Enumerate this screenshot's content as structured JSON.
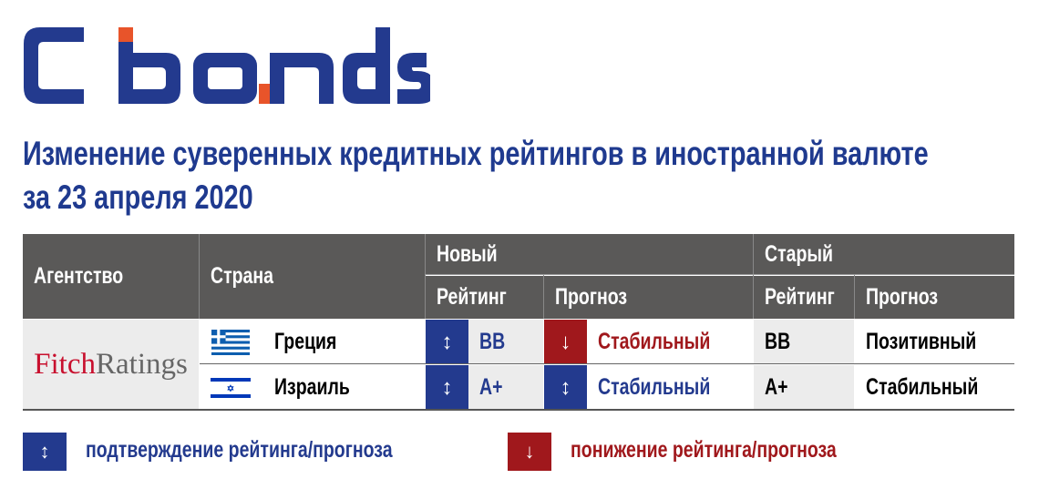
{
  "logo": {
    "text": "Cbonds"
  },
  "title": {
    "line1": "Изменение суверенных кредитных рейтингов в иностранной валюте",
    "line2": "за 23 апреля 2020"
  },
  "table": {
    "headers": {
      "agency": "Агентство",
      "country": "Страна",
      "new": "Новый",
      "old": "Старый",
      "rating": "Рейтинг",
      "outlook": "Прогноз"
    },
    "agency_logo": {
      "part1": "Fitch",
      "part2": "Ratings"
    },
    "rows": [
      {
        "country": "Греция",
        "flag": "greece-flag",
        "new_rating_arrow": "↕",
        "new_rating": "BB",
        "new_outlook_arrow": "↓",
        "new_outlook": "Стабильный",
        "old_rating": "BB",
        "old_outlook": "Позитивный"
      },
      {
        "country": "Израиль",
        "flag": "israel-flag",
        "new_rating_arrow": "↕",
        "new_rating": "A+",
        "new_outlook_arrow": "↕",
        "new_outlook": "Стабильный",
        "old_rating": "A+",
        "old_outlook": "Стабильный"
      }
    ]
  },
  "legend": [
    {
      "arrow": "↕",
      "label": "подтверждение рейтинга/прогноза",
      "color": "#233a8e"
    },
    {
      "arrow": "↓",
      "label": "понижение рейтинга/прогноза",
      "color": "#a0181c"
    }
  ],
  "colors": {
    "blue": "#233a8e",
    "red": "#a0181c",
    "orange": "#e8542a",
    "header": "#5a5958"
  }
}
